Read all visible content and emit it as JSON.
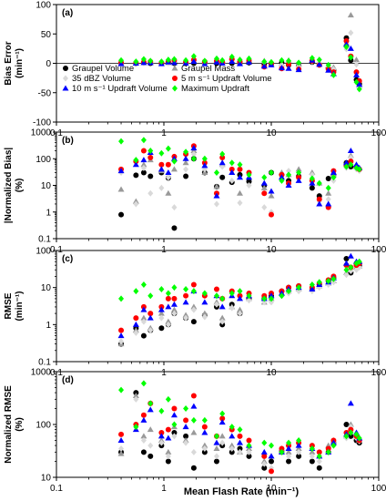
{
  "x_label": "Mean Flash Rate (min⁻¹)",
  "legend": [
    {
      "key": "graupel_volume",
      "label": "Graupel Volume",
      "color": "#000000",
      "marker": "circle"
    },
    {
      "key": "graupel_mass",
      "label": "Graupel Mass",
      "color": "#999999",
      "marker": "triangle"
    },
    {
      "key": "dbz35_volume",
      "label": "35 dBZ Volume",
      "color": "#d9d9d9",
      "marker": "diamond"
    },
    {
      "key": "updraft5_volume",
      "label": "5 m s⁻¹ Updraft Volume",
      "color": "#ff0000",
      "marker": "circle"
    },
    {
      "key": "updraft10_volume",
      "label": "10 m s⁻¹ Updraft Volume",
      "color": "#0000ff",
      "marker": "triangle"
    },
    {
      "key": "max_updraft",
      "label": "Maximum Updraft",
      "color": "#00ff00",
      "marker": "diamond"
    }
  ],
  "chart_data": [
    {
      "type": "scatter",
      "panel": "(a)",
      "ylabel_lines": [
        "Bias Error",
        "(min⁻¹)"
      ],
      "x_scale": "log",
      "xlim": [
        0.1,
        100
      ],
      "x_ticks": [
        "0.1",
        "1",
        "10",
        "100"
      ],
      "ylim": [
        -100,
        100
      ],
      "y_scale": "linear",
      "y_ticks": [
        "-100",
        "-50",
        "0",
        "50",
        "100"
      ],
      "x": [
        0.4,
        0.55,
        0.65,
        0.75,
        0.95,
        1.1,
        1.25,
        1.6,
        1.9,
        2.4,
        3.1,
        3.5,
        4.3,
        5.1,
        6.2,
        8.6,
        10,
        12.5,
        14.5,
        18,
        24,
        28,
        34,
        38,
        50,
        55,
        62,
        66
      ],
      "series": [
        {
          "key": "graupel_volume",
          "values": [
            1,
            0,
            1,
            0,
            0,
            1,
            0,
            1,
            0,
            1,
            0,
            1,
            0,
            0,
            1,
            -1,
            -2,
            1,
            -3,
            -4,
            2,
            -1,
            -8,
            -12,
            43,
            5,
            -28,
            -35
          ]
        },
        {
          "key": "graupel_mass",
          "values": [
            0,
            2,
            1,
            3,
            2,
            1,
            5,
            3,
            8,
            2,
            4,
            3,
            10,
            2,
            6,
            4,
            1,
            -1,
            5,
            -2,
            8,
            2,
            -4,
            -7,
            34,
            82,
            6,
            -38
          ]
        },
        {
          "key": "dbz35_volume",
          "values": [
            0,
            1,
            0,
            2,
            1,
            0,
            2,
            1,
            5,
            2,
            3,
            1,
            4,
            2,
            3,
            2,
            1,
            -3,
            3,
            -6,
            3,
            1,
            -5,
            -10,
            24,
            52,
            -2,
            -41
          ]
        },
        {
          "key": "updraft5_volume",
          "values": [
            1,
            1,
            2,
            3,
            1,
            3,
            5,
            2,
            6,
            3,
            4,
            2,
            7,
            3,
            5,
            -6,
            0,
            -9,
            -2,
            -10,
            4,
            -3,
            -10,
            -15,
            38,
            12,
            -15,
            -30
          ]
        },
        {
          "key": "updraft10_volume",
          "values": [
            -1,
            0,
            1,
            1,
            -1,
            2,
            1,
            0,
            3,
            -1,
            2,
            0,
            3,
            -1,
            2,
            -5,
            -3,
            -8,
            -9,
            -11,
            5,
            -2,
            -12,
            -18,
            32,
            25,
            -20,
            -36
          ]
        },
        {
          "key": "max_updraft",
          "values": [
            5,
            3,
            7,
            4,
            3,
            6,
            7,
            5,
            12,
            4,
            8,
            5,
            11,
            6,
            8,
            3,
            2,
            5,
            4,
            1,
            9,
            6,
            -3,
            -20,
            28,
            10,
            -32,
            -44
          ]
        }
      ]
    },
    {
      "type": "scatter",
      "panel": "(b)",
      "ylabel_lines": [
        "|Normalized Bias|",
        "(%)"
      ],
      "x_scale": "log",
      "xlim": [
        0.1,
        100
      ],
      "x_ticks": [
        "0.1",
        "1",
        "10",
        "100"
      ],
      "y_scale": "log",
      "ylim": [
        0.1,
        1000
      ],
      "y_ticks": [
        "0.1",
        "1",
        "10",
        "100",
        "1000"
      ],
      "x": [
        0.4,
        0.55,
        0.65,
        0.75,
        0.95,
        1.1,
        1.25,
        1.6,
        1.9,
        2.4,
        3.1,
        3.5,
        4.3,
        5.1,
        6.2,
        8.6,
        10,
        12.5,
        14.5,
        18,
        24,
        28,
        34,
        38,
        50,
        55,
        62,
        66
      ],
      "series": [
        {
          "key": "graupel_volume",
          "values": [
            0.8,
            24,
            30,
            22,
            30,
            19,
            0.25,
            22,
            100,
            30,
            9,
            20,
            13,
            25,
            14,
            10,
            30,
            25,
            15,
            22,
            8,
            4,
            18,
            25,
            70,
            50,
            45,
            40
          ]
        },
        {
          "key": "graupel_mass",
          "values": [
            7,
            2.5,
            60,
            90,
            35,
            5,
            40,
            70,
            200,
            30,
            9,
            60,
            30,
            5,
            20,
            8,
            4,
            30,
            25,
            40,
            30,
            12,
            5,
            25,
            60,
            130,
            50,
            45
          ]
        },
        {
          "key": "dbz35_volume",
          "values": [
            30,
            2,
            45,
            5,
            8,
            20,
            1.5,
            40,
            150,
            40,
            2,
            50,
            15,
            2.2,
            10,
            1.5,
            1,
            20,
            35,
            20,
            25,
            2.5,
            3,
            15,
            45,
            110,
            40,
            35
          ]
        },
        {
          "key": "updraft5_volume",
          "values": [
            40,
            80,
            200,
            110,
            60,
            60,
            120,
            150,
            300,
            70,
            5,
            110,
            40,
            40,
            30,
            5,
            0.8,
            25,
            12,
            20,
            15,
            3,
            1.5,
            35,
            55,
            80,
            50,
            40
          ]
        },
        {
          "key": "updraft10_volume",
          "values": [
            35,
            60,
            90,
            170,
            40,
            30,
            100,
            100,
            250,
            55,
            4,
            70,
            30,
            20,
            20,
            12,
            6,
            20,
            10,
            15,
            12,
            2,
            2,
            30,
            70,
            200,
            60,
            45
          ]
        },
        {
          "key": "max_updraft",
          "values": [
            450,
            90,
            500,
            200,
            160,
            240,
            80,
            180,
            100,
            100,
            30,
            150,
            70,
            60,
            25,
            20,
            30,
            15,
            25,
            30,
            18,
            12,
            8,
            20,
            50,
            60,
            45,
            40
          ]
        }
      ]
    },
    {
      "type": "scatter",
      "panel": "(c)",
      "ylabel_lines": [
        "RMSE",
        "(min⁻¹)"
      ],
      "x_scale": "log",
      "xlim": [
        0.1,
        100
      ],
      "x_ticks": [
        "0.1",
        "1",
        "10",
        "100"
      ],
      "y_scale": "log",
      "ylim": [
        0.1,
        100
      ],
      "y_ticks": [
        "0.1",
        "1",
        "10",
        "100"
      ],
      "x": [
        0.4,
        0.55,
        0.65,
        0.75,
        0.95,
        1.1,
        1.25,
        1.6,
        1.9,
        2.4,
        3.1,
        3.5,
        4.3,
        5.1,
        6.2,
        8.6,
        10,
        12.5,
        14.5,
        18,
        24,
        28,
        34,
        38,
        50,
        55,
        62,
        66
      ],
      "series": [
        {
          "key": "graupel_volume",
          "values": [
            0.3,
            0.8,
            0.5,
            0.7,
            0.8,
            1,
            2,
            1.5,
            1.2,
            1.8,
            3,
            1,
            3.5,
            2,
            5,
            5,
            6,
            8,
            10,
            11,
            9,
            12,
            15,
            18,
            60,
            25,
            45,
            40
          ]
        },
        {
          "key": "graupel_mass",
          "values": [
            0.3,
            0.7,
            1.5,
            0.8,
            2,
            1.2,
            2.5,
            1.8,
            3,
            2,
            4,
            1.5,
            3,
            2.5,
            5,
            4,
            5,
            7,
            8,
            9,
            10,
            11,
            13,
            15,
            25,
            30,
            35,
            38
          ]
        },
        {
          "key": "dbz35_volume",
          "values": [
            0.35,
            0.6,
            1.2,
            0.7,
            1.5,
            1,
            2,
            1.5,
            2.5,
            1.6,
            3.5,
            1.2,
            2.8,
            2,
            4.5,
            4,
            4,
            6,
            7,
            8,
            8,
            10,
            12,
            14,
            22,
            28,
            30,
            35
          ]
        },
        {
          "key": "updraft5_volume",
          "values": [
            0.7,
            1.5,
            3,
            2,
            3,
            5,
            5,
            6,
            12,
            6,
            9,
            5,
            8,
            6,
            7,
            6,
            7,
            8,
            10,
            11,
            10,
            13,
            16,
            20,
            40,
            35,
            40,
            45
          ]
        },
        {
          "key": "updraft10_volume",
          "values": [
            0.5,
            1,
            2.5,
            1.5,
            2.5,
            3,
            3.5,
            4,
            8,
            4,
            6,
            3,
            6,
            5,
            6,
            5,
            6,
            7,
            9,
            10,
            9,
            12,
            14,
            18,
            45,
            70,
            50,
            50
          ]
        },
        {
          "key": "max_updraft",
          "values": [
            5,
            8,
            12,
            6,
            9,
            7,
            10,
            9,
            8,
            7,
            6,
            5,
            7,
            8,
            6,
            5,
            5,
            6,
            8,
            10,
            12,
            14,
            15,
            17,
            30,
            35,
            45,
            50
          ]
        }
      ]
    },
    {
      "type": "scatter",
      "panel": "(d)",
      "ylabel_lines": [
        "Normalized RMSE",
        "(%)"
      ],
      "x_scale": "log",
      "xlim": [
        0.1,
        100
      ],
      "x_ticks": [
        "0.1",
        "1",
        "10",
        "100"
      ],
      "y_scale": "log",
      "ylim": [
        10,
        1000
      ],
      "y_ticks": [
        "10",
        "100",
        "1000"
      ],
      "x": [
        0.4,
        0.55,
        0.65,
        0.75,
        0.95,
        1.1,
        1.25,
        1.6,
        1.9,
        2.4,
        3.1,
        3.5,
        4.3,
        5.1,
        6.2,
        8.6,
        10,
        12.5,
        14.5,
        18,
        24,
        28,
        34,
        38,
        50,
        55,
        62,
        66
      ],
      "series": [
        {
          "key": "graupel_volume",
          "values": [
            30,
            400,
            30,
            25,
            40,
            20,
            70,
            60,
            15,
            30,
            20,
            40,
            30,
            35,
            25,
            15,
            20,
            30,
            20,
            25,
            20,
            15,
            30,
            45,
            100,
            60,
            50,
            45
          ]
        },
        {
          "key": "graupel_mass",
          "values": [
            28,
            350,
            60,
            80,
            50,
            30,
            90,
            50,
            70,
            40,
            35,
            60,
            40,
            30,
            35,
            20,
            25,
            35,
            30,
            35,
            30,
            25,
            40,
            50,
            60,
            100,
            60,
            50
          ]
        },
        {
          "key": "dbz35_volume",
          "values": [
            35,
            300,
            50,
            40,
            45,
            25,
            60,
            45,
            30,
            35,
            25,
            45,
            35,
            30,
            30,
            18,
            15,
            30,
            25,
            30,
            25,
            20,
            35,
            45,
            55,
            90,
            55,
            48
          ]
        },
        {
          "key": "updraft5_volume",
          "values": [
            65,
            100,
            150,
            250,
            70,
            80,
            200,
            120,
            350,
            90,
            60,
            130,
            80,
            60,
            50,
            25,
            13,
            35,
            40,
            45,
            40,
            30,
            35,
            50,
            70,
            80,
            60,
            50
          ]
        },
        {
          "key": "updraft10_volume",
          "values": [
            50,
            80,
            120,
            190,
            60,
            55,
            150,
            90,
            220,
            70,
            45,
            110,
            60,
            45,
            40,
            30,
            25,
            30,
            35,
            40,
            35,
            25,
            30,
            45,
            65,
            250,
            70,
            55
          ]
        },
        {
          "key": "max_updraft",
          "values": [
            450,
            90,
            600,
            250,
            180,
            300,
            100,
            200,
            120,
            120,
            60,
            160,
            90,
            80,
            40,
            45,
            40,
            30,
            45,
            50,
            35,
            25,
            30,
            40,
            60,
            70,
            65,
            55
          ]
        }
      ]
    }
  ]
}
